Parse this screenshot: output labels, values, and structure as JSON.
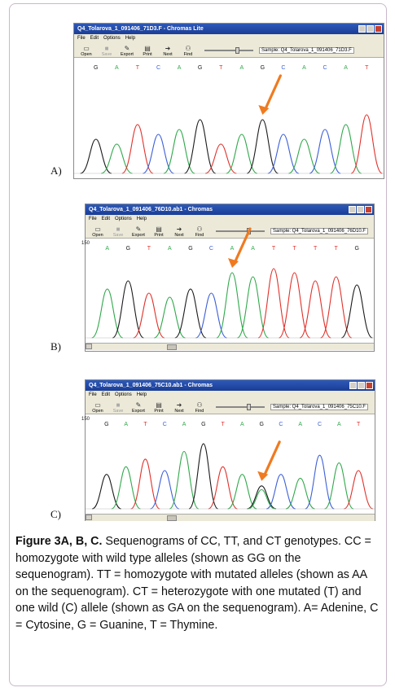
{
  "panels": [
    {
      "label": "A)",
      "window_title": "Q4_Tolarova_1_091406_71D3.F - Chromas Lite",
      "menu": [
        "File",
        "Edit",
        "Options",
        "Help"
      ],
      "toolbar": [
        "Open",
        "Save",
        "Export",
        "Print",
        "Next",
        "Find"
      ],
      "sample": "Sample: Q4_Tolarova_1_091406_71D3.F",
      "bases": [
        "G",
        "A",
        "T",
        "C",
        "A",
        "G",
        "T",
        "A",
        "G",
        "C",
        "A",
        "C",
        "A",
        "T"
      ],
      "position": "",
      "annotation": "arrow pointing to G peak"
    },
    {
      "label": "B)",
      "window_title": "Q4_Tolarova_1_091406_76D10.ab1 - Chromas",
      "menu": [
        "File",
        "Edit",
        "Options",
        "Help"
      ],
      "toolbar": [
        "Open",
        "Save",
        "Export",
        "Print",
        "Next",
        "Find"
      ],
      "sample": "Sample: Q4_Tolarova_1_091406_76D10.F",
      "bases": [
        "A",
        "G",
        "T",
        "A",
        "G",
        "C",
        "A",
        "A",
        "T",
        "T",
        "T",
        "T",
        "G"
      ],
      "position": "150",
      "annotation": "arrow pointing to A peak"
    },
    {
      "label": "C)",
      "window_title": "Q4_Tolarova_1_091406_75C10.ab1 - Chromas",
      "menu": [
        "File",
        "Edit",
        "Options",
        "Help"
      ],
      "toolbar": [
        "Open",
        "Save",
        "Export",
        "Print",
        "Next",
        "Find"
      ],
      "sample": "Sample: Q4_Tolarova_1_091406_75C10.F",
      "bases": [
        "G",
        "A",
        "T",
        "C",
        "A",
        "G",
        "T",
        "A",
        "G",
        "C",
        "A",
        "C",
        "A",
        "T"
      ],
      "position": "150",
      "annotation": "arrow pointing to overlapping G/A peaks"
    }
  ],
  "colors": {
    "A": "#2fa84a",
    "C": "#3c5fd8",
    "G": "#1a1a1a",
    "T": "#e0302a",
    "arrow": "#f07a20"
  },
  "caption": {
    "label": "Figure 3A, B, C.",
    "text": " Sequenograms of CC, TT, and CT genotypes. CC = homozygote with wild type alleles (shown as GG on the sequenogram). TT = homozygote with mutated alleles (shown as AA on the sequenogram). CT = heterozygote with one mutated (T) and one wild (C) allele (shown as GA on the sequenogram). A= Adenine, C = Cytosine, G = Guanine, T = Thymine."
  }
}
